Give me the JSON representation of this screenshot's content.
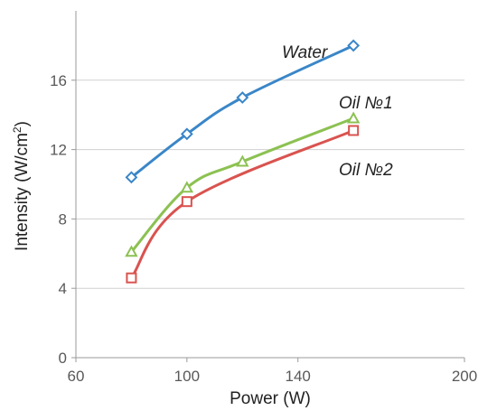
{
  "chart_data": {
    "type": "line",
    "title": "",
    "xlabel": "Power (W)",
    "ylabel_text": "Intensity (W/cm",
    "ylabel_sup": "2",
    "ylabel_close": ")",
    "xlim": [
      60,
      200
    ],
    "ylim": [
      0,
      20
    ],
    "xticks": [
      60,
      100,
      140,
      200
    ],
    "yticks": [
      0,
      4,
      8,
      12,
      16
    ],
    "grid": "horizontal",
    "legend": "labels next to lines",
    "series": [
      {
        "name": "Water",
        "color": "#3a86c8",
        "marker": "diamond",
        "x": [
          80,
          100,
          120,
          160
        ],
        "y": [
          10.4,
          12.9,
          15.0,
          18.0
        ]
      },
      {
        "name": "Oil №1",
        "color": "#8cc152",
        "marker": "triangle",
        "x": [
          80,
          100,
          120,
          160
        ],
        "y": [
          6.1,
          9.8,
          11.3,
          13.8
        ]
      },
      {
        "name": "Oil №2",
        "color": "#d9534f",
        "marker": "square",
        "x": [
          80,
          100,
          160
        ],
        "y": [
          4.6,
          9.0,
          13.1
        ]
      }
    ]
  }
}
